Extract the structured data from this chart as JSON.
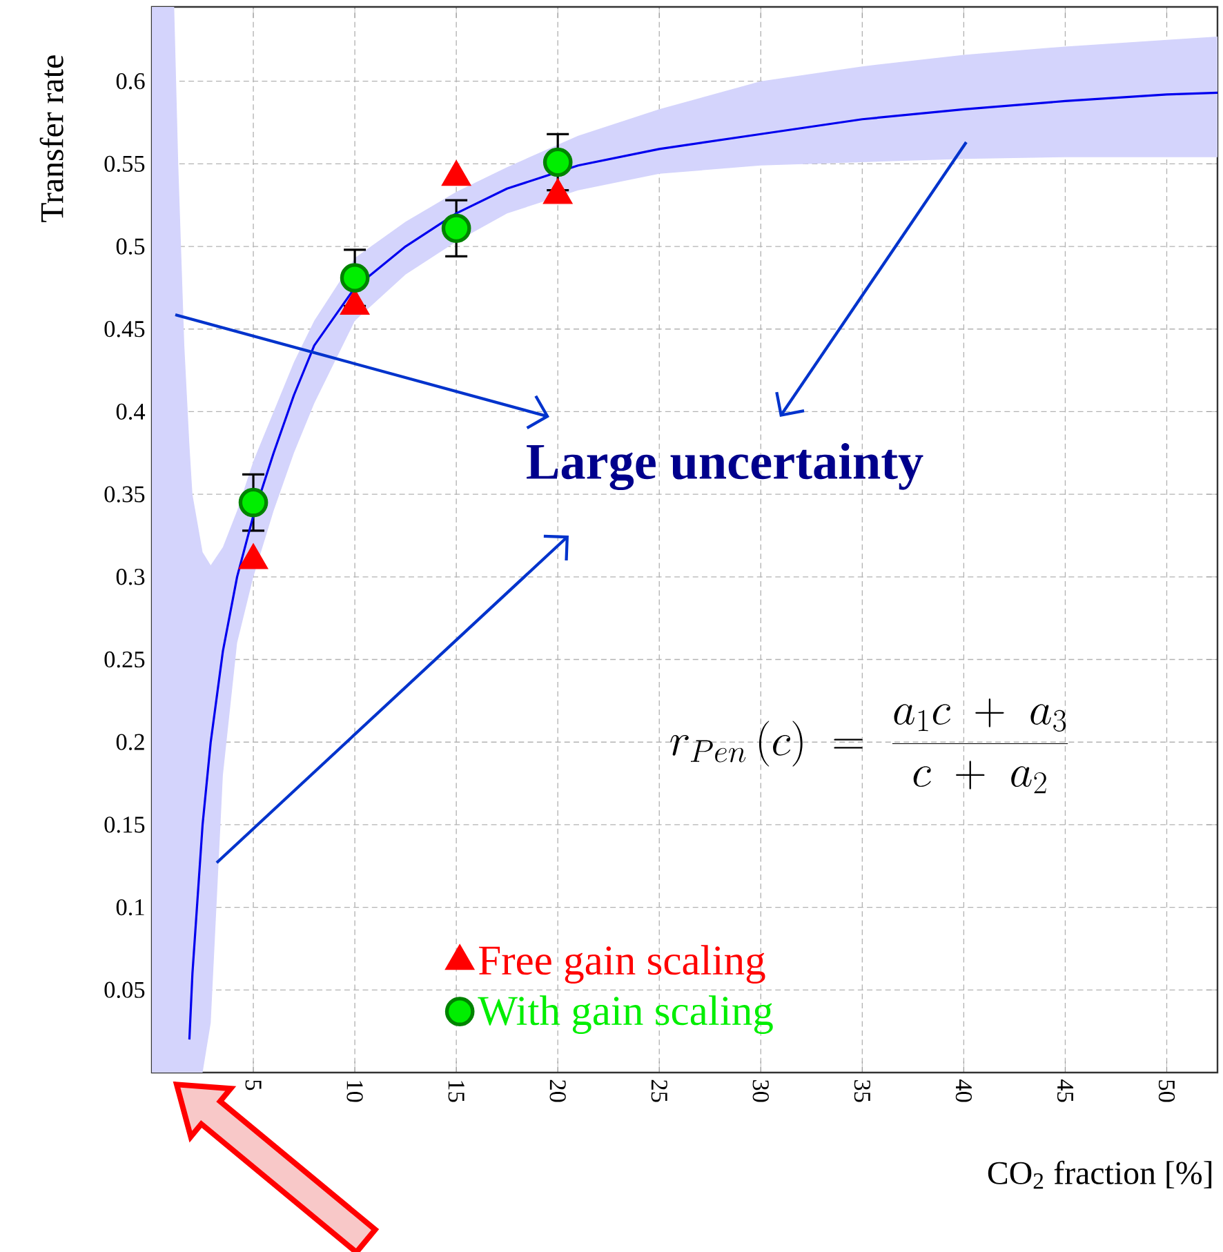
{
  "chart_data": {
    "type": "scatter",
    "xlabel": "CO$_{2}$ fraction [%]",
    "ylabel": "Transfer rate",
    "xlim": [
      0,
      52.5
    ],
    "ylim": [
      0,
      0.645
    ],
    "xticks": [
      5,
      10,
      15,
      20,
      25,
      30,
      35,
      40,
      45,
      50
    ],
    "yticks": [
      0.05,
      0.1,
      0.15,
      0.2,
      0.25,
      0.3,
      0.35,
      0.4,
      0.45,
      0.5,
      0.55,
      0.6
    ],
    "grid": true,
    "legend": "bottom left",
    "annotations": [
      "Large uncertainty",
      "r_{Pen}\\,(c) \\;=\\; \\frac{a_1 c \\;+\\; a_3}{c \\;+\\; a_2}"
    ],
    "series": [
      {
        "type": "line",
        "color": "#0000ee",
        "marker": "none",
        "x": [
          0,
          1.1,
          1.3,
          1.6,
          1.85,
          2.0,
          2.5,
          2.9,
          3.5,
          4.2,
          5,
          6,
          7,
          8,
          10,
          12.5,
          15,
          17.5,
          21,
          25,
          30,
          35,
          40,
          45,
          50,
          52.5
        ],
        "values": [
          null,
          null,
          null,
          null,
          0.02,
          0.06,
          0.15,
          0.2,
          0.255,
          0.3,
          0.337,
          0.375,
          0.41,
          0.44,
          0.475,
          0.5,
          0.52,
          0.535,
          0.549,
          0.559,
          0.568,
          0.577,
          0.583,
          0.588,
          0.592,
          0.593
        ],
        "upper": [
          0.645,
          0.645,
          0.55,
          0.44,
          0.38,
          0.35,
          0.315,
          0.307,
          0.318,
          0.34,
          0.37,
          0.4,
          0.43,
          0.455,
          0.493,
          0.515,
          0.533,
          0.548,
          0.567,
          0.583,
          0.6,
          0.609,
          0.616,
          0.621,
          0.625,
          0.627
        ],
        "lower": [
          0,
          0,
          0,
          0,
          0,
          0,
          0,
          0.03,
          0.18,
          0.26,
          0.3,
          0.34,
          0.375,
          0.405,
          0.455,
          0.483,
          0.503,
          0.52,
          0.534,
          0.544,
          0.549,
          0.551,
          0.553,
          0.554,
          0.554,
          0.554
        ]
      },
      {
        "name": "Free gain scaling",
        "color": "#ff0000",
        "marker": "triangle",
        "x": [
          5,
          10,
          15,
          20
        ],
        "values": [
          0.31,
          0.464,
          0.542,
          0.531
        ]
      },
      {
        "name": "With gain scaling",
        "color": "#00ee00",
        "marker": "circle",
        "x": [
          5,
          10,
          15,
          20
        ],
        "values": [
          0.345,
          0.481,
          0.511,
          0.551
        ],
        "errors": [
          0.017,
          0.017,
          0.017,
          0.017
        ]
      }
    ]
  }
}
